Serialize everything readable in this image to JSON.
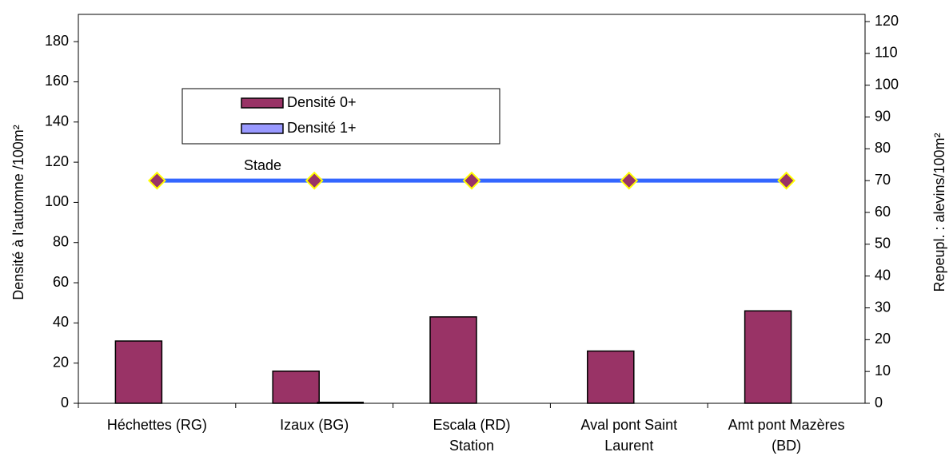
{
  "chart_data": {
    "type": "bar",
    "categories": [
      [
        "Héchettes (RG)"
      ],
      [
        "Izaux (BG)"
      ],
      [
        "Escala (RD)",
        "Station"
      ],
      [
        "Aval pont Saint",
        "Laurent"
      ],
      [
        "Amt pont Mazères",
        "(BD)"
      ]
    ],
    "series": [
      {
        "name": "Densité 0+",
        "color": "#993366",
        "values": [
          31,
          16,
          43,
          26,
          46
        ]
      },
      {
        "name": "Densité 1+",
        "color": "#9999ff",
        "values": [
          0,
          0.5,
          0,
          0,
          0
        ]
      },
      {
        "name": "Stade",
        "type": "line",
        "axis": "y2",
        "color": "#3366ff",
        "marker_color": "#993366",
        "marker_edge": "#ffff00",
        "values": [
          70,
          70,
          70,
          70,
          70
        ]
      }
    ],
    "ylabel": "Densité à l'automne /100m²",
    "y2label": "Repeupl. : alevins/100m²",
    "ylim": [
      0,
      190
    ],
    "yticks": [
      0,
      20,
      40,
      60,
      80,
      100,
      120,
      140,
      160,
      180
    ],
    "y2lim": [
      0,
      120
    ],
    "y2ticks": [
      0,
      10,
      20,
      30,
      40,
      50,
      60,
      70,
      80,
      90,
      100,
      110,
      120
    ]
  }
}
